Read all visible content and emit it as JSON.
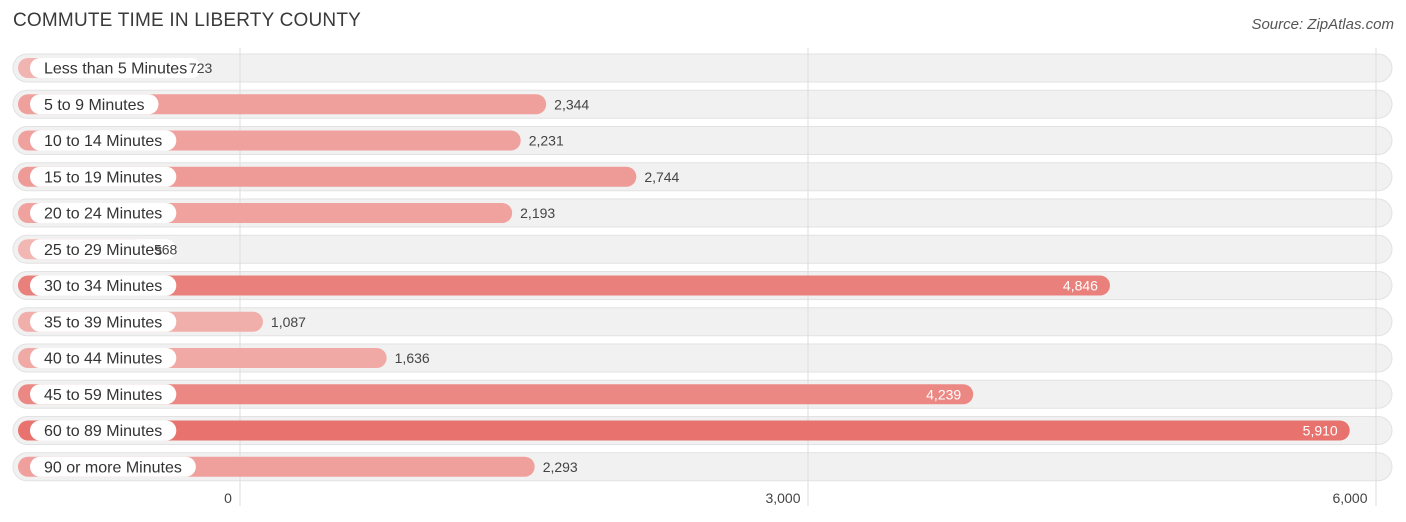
{
  "chart_data": {
    "type": "bar",
    "orientation": "horizontal",
    "title": "COMMUTE TIME IN LIBERTY COUNTY",
    "source": "Source: ZipAtlas.com",
    "categories": [
      "Less than 5 Minutes",
      "5 to 9 Minutes",
      "10 to 14 Minutes",
      "15 to 19 Minutes",
      "20 to 24 Minutes",
      "25 to 29 Minutes",
      "30 to 34 Minutes",
      "35 to 39 Minutes",
      "40 to 44 Minutes",
      "45 to 59 Minutes",
      "60 to 89 Minutes",
      "90 or more Minutes"
    ],
    "values": [
      723,
      2344,
      2231,
      2744,
      2193,
      568,
      4846,
      1087,
      1636,
      4239,
      5910,
      2293
    ],
    "value_labels": [
      "723",
      "2,344",
      "2,231",
      "2,744",
      "2,193",
      "568",
      "4,846",
      "1,087",
      "1,636",
      "4,239",
      "5,910",
      "2,293"
    ],
    "xlim": [
      0,
      6000
    ],
    "ticks": [
      0,
      3000,
      6000
    ],
    "tick_labels": [
      "0",
      "3,000",
      "6,000"
    ],
    "xlabel": "",
    "ylabel": "",
    "grid": true,
    "colors": {
      "bar_light": "#f2b6b3",
      "bar_dark": "#e8736e",
      "track": "#f1f1f1",
      "track_border": "#e2e2e2",
      "label_pill": "#ffffff",
      "grid": "#dddddd"
    }
  }
}
